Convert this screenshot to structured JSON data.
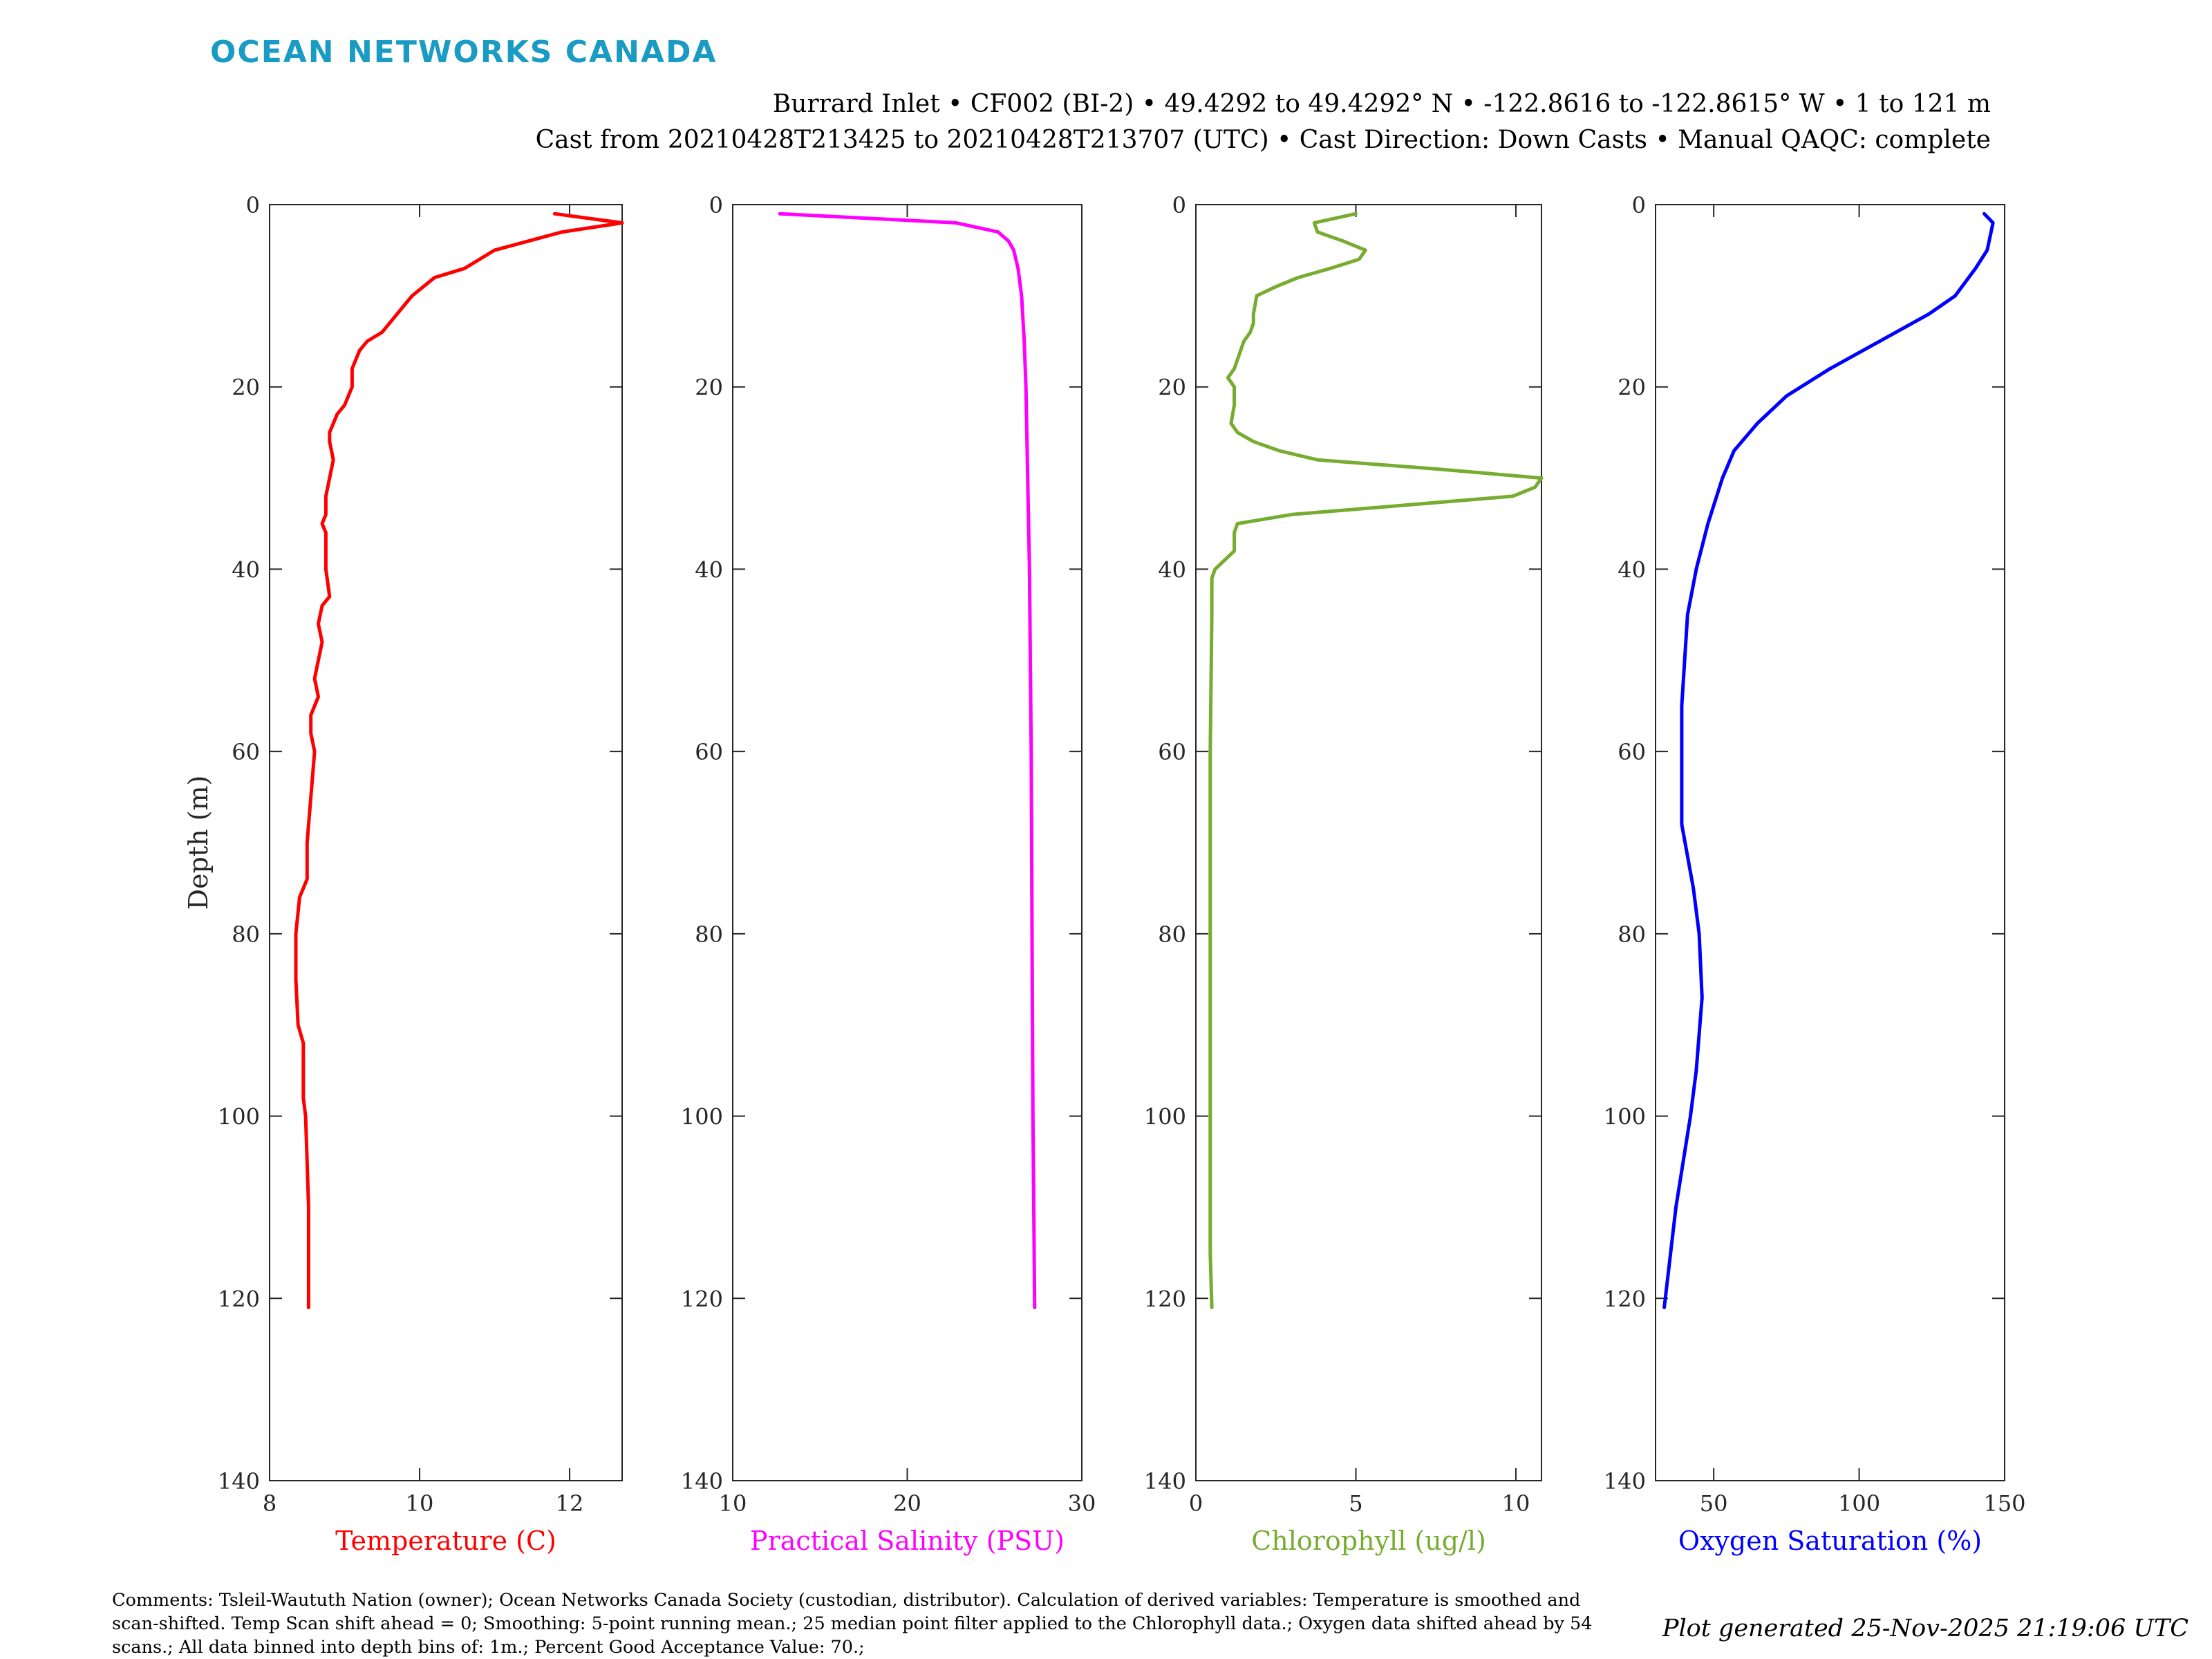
{
  "header": {
    "brand": "OCEAN NETWORKS CANADA",
    "line1": "Burrard Inlet • CF002 (BI-2) • 49.4292 to 49.4292° N • -122.8616 to -122.8615° W • 1 to 121 m",
    "line2": "Cast from 20210428T213425 to 20210428T213707 (UTC) • Cast Direction: Down Casts • Manual QAQC: complete"
  },
  "footer": {
    "comments": "Comments: Tsleil-Waututh Nation (owner); Ocean Networks Canada Society (custodian, distributor). Calculation of derived variables: Temperature is smoothed and scan-shifted. Temp Scan shift ahead = 0; Smoothing: 5-point running mean.; 25 median point filter applied to the Chlorophyll data.; Oxygen data shifted ahead by 54 scans.; All data binned into depth bins of: 1m.; Percent Good Acceptance Value: 70.;",
    "generated": "Plot generated 25-Nov-2025 21:19:06 UTC"
  },
  "chart_data": [
    {
      "type": "line",
      "xlabel": "Temperature (C)",
      "ylabel": "Depth (m)",
      "xlim": [
        8,
        12.7
      ],
      "ylim": [
        0,
        140
      ],
      "y_reversed": true,
      "xticks": [
        8,
        10,
        12
      ],
      "yticks": [
        0,
        20,
        40,
        60,
        80,
        100,
        120,
        140
      ],
      "color": "#ff0000",
      "series": [
        {
          "depth_m": [
            1,
            2,
            3,
            5,
            7,
            8,
            10,
            12,
            14,
            15,
            16,
            18,
            20,
            22,
            23,
            25,
            26,
            28,
            30,
            32,
            34,
            35,
            36,
            38,
            40,
            43,
            44,
            46,
            48,
            50,
            52,
            54,
            56,
            58,
            60,
            65,
            70,
            74,
            76,
            80,
            85,
            90,
            92,
            95,
            98,
            100,
            105,
            110,
            115,
            121
          ],
          "temperature_c": [
            11.8,
            12.7,
            11.9,
            11.0,
            10.6,
            10.2,
            9.9,
            9.7,
            9.5,
            9.3,
            9.2,
            9.1,
            9.1,
            9.0,
            8.9,
            8.8,
            8.8,
            8.85,
            8.8,
            8.75,
            8.75,
            8.7,
            8.75,
            8.75,
            8.75,
            8.8,
            8.7,
            8.65,
            8.7,
            8.65,
            8.6,
            8.65,
            8.55,
            8.55,
            8.6,
            8.55,
            8.5,
            8.5,
            8.4,
            8.35,
            8.35,
            8.38,
            8.45,
            8.45,
            8.45,
            8.48,
            8.5,
            8.52,
            8.52,
            8.52
          ]
        }
      ]
    },
    {
      "type": "line",
      "xlabel": "Practical Salinity (PSU)",
      "ylabel": "",
      "xlim": [
        10,
        30
      ],
      "ylim": [
        0,
        140
      ],
      "y_reversed": true,
      "xticks": [
        10,
        20,
        30
      ],
      "yticks": [
        0,
        20,
        40,
        60,
        80,
        100,
        120,
        140
      ],
      "color": "#ff00ff",
      "series": [
        {
          "depth_m": [
            1,
            2,
            3,
            4,
            5,
            7,
            10,
            15,
            20,
            30,
            40,
            60,
            80,
            100,
            121
          ],
          "salinity_psu": [
            12.7,
            22.8,
            25.2,
            25.8,
            26.1,
            26.35,
            26.55,
            26.7,
            26.8,
            26.9,
            27.0,
            27.1,
            27.15,
            27.2,
            27.3
          ]
        }
      ]
    },
    {
      "type": "line",
      "xlabel": "Chlorophyll (ug/l)",
      "ylabel": "",
      "xlim": [
        0,
        10.8
      ],
      "ylim": [
        0,
        140
      ],
      "y_reversed": true,
      "xticks": [
        0,
        5,
        10
      ],
      "yticks": [
        0,
        20,
        40,
        60,
        80,
        100,
        120,
        140
      ],
      "color": "#77ac30",
      "series": [
        {
          "depth_m": [
            1,
            2,
            3,
            4,
            5,
            6,
            7,
            8,
            9,
            10,
            12,
            13,
            14,
            15,
            16,
            17,
            18,
            19,
            20,
            22,
            24,
            25,
            26,
            27,
            28,
            29,
            30,
            31,
            32,
            34,
            35,
            36,
            38,
            39,
            40,
            41,
            45,
            60,
            80,
            100,
            115,
            121
          ],
          "chlorophyll_ugl": [
            5.0,
            3.7,
            3.8,
            4.6,
            5.3,
            5.1,
            4.2,
            3.2,
            2.5,
            1.9,
            1.8,
            1.8,
            1.7,
            1.5,
            1.4,
            1.3,
            1.2,
            1.0,
            1.2,
            1.2,
            1.1,
            1.3,
            1.8,
            2.6,
            3.8,
            7.5,
            10.8,
            10.6,
            9.9,
            3.0,
            1.3,
            1.2,
            1.2,
            0.9,
            0.6,
            0.5,
            0.5,
            0.45,
            0.45,
            0.45,
            0.45,
            0.5
          ]
        }
      ]
    },
    {
      "type": "line",
      "xlabel": "Oxygen Saturation (%)",
      "ylabel": "",
      "xlim": [
        30,
        150
      ],
      "ylim": [
        0,
        140
      ],
      "y_reversed": true,
      "xticks": [
        50,
        100,
        150
      ],
      "yticks": [
        0,
        20,
        40,
        60,
        80,
        100,
        120,
        140
      ],
      "color": "#0000ff",
      "series": [
        {
          "depth_m": [
            1,
            2,
            5,
            7,
            10,
            12,
            15,
            18,
            21,
            24,
            27,
            30,
            35,
            40,
            45,
            50,
            55,
            60,
            68,
            75,
            80,
            87,
            95,
            100,
            110,
            121
          ],
          "oxygen_saturation_pct": [
            143,
            146,
            144,
            140,
            133,
            124,
            107,
            90,
            75,
            65,
            57,
            53,
            48,
            44,
            41,
            40,
            39,
            39,
            39,
            43,
            45,
            46,
            44,
            42,
            37,
            33
          ]
        }
      ]
    }
  ]
}
